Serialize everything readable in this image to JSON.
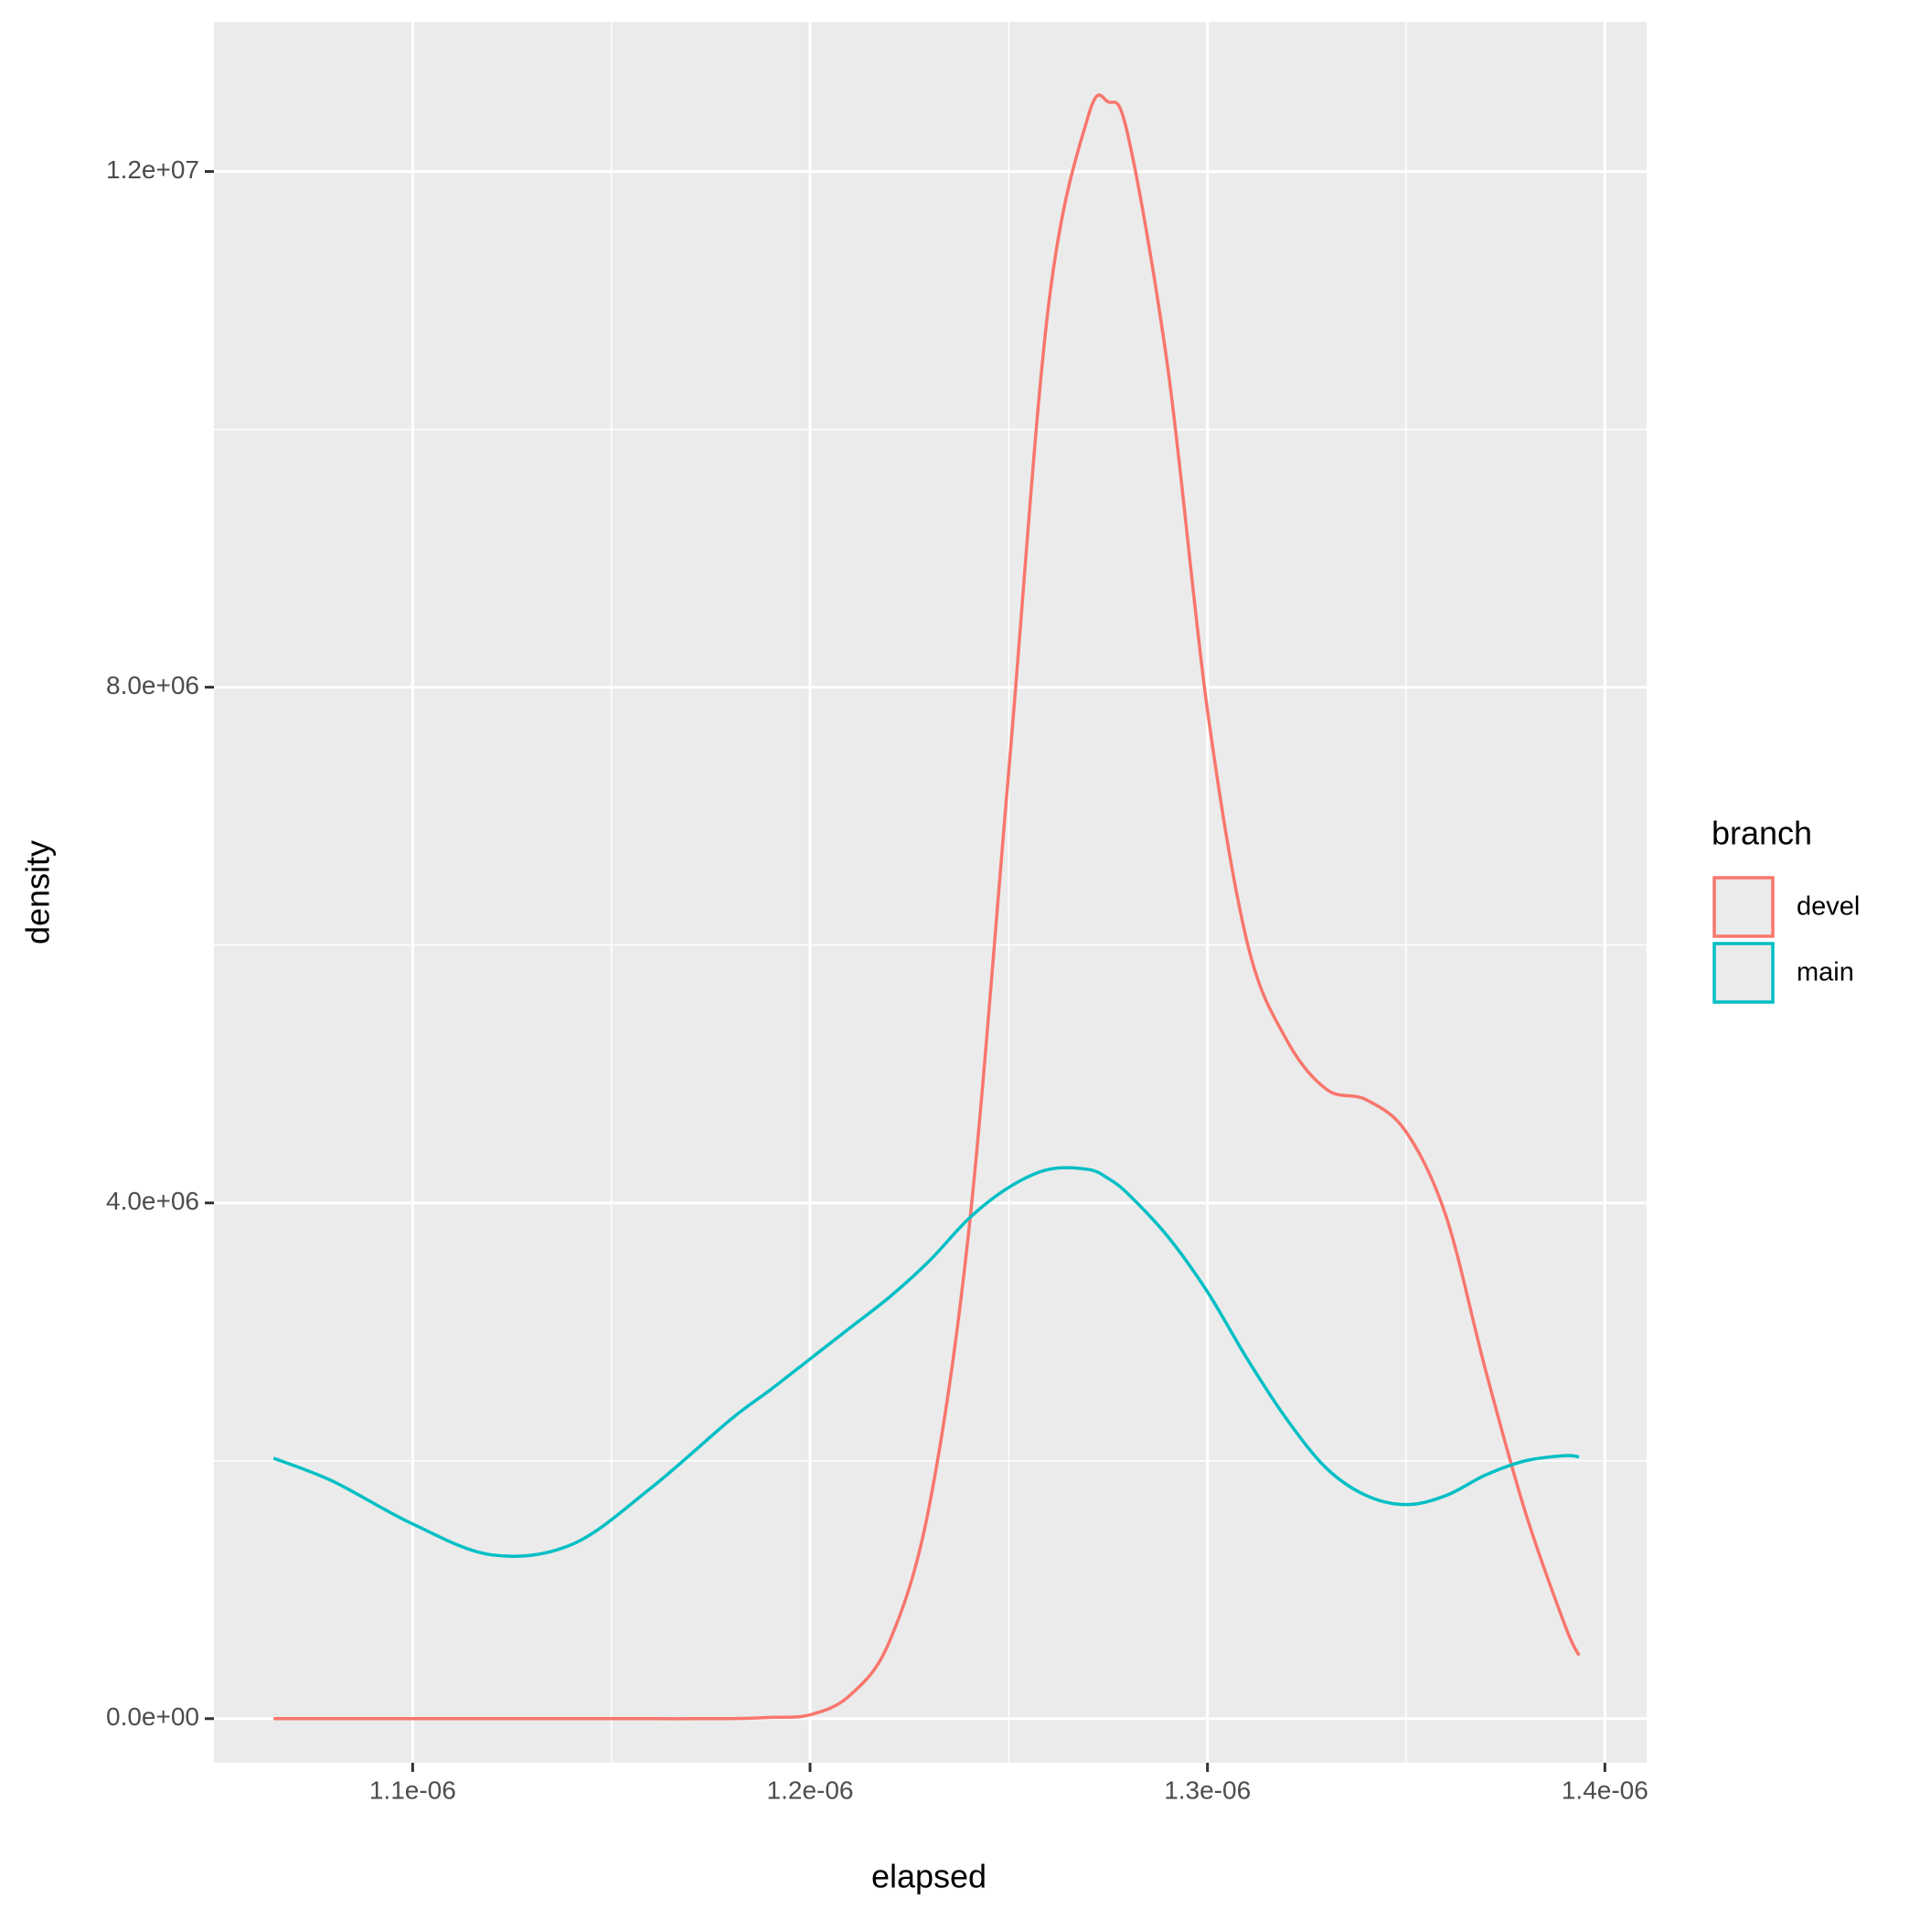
{
  "chart_data": {
    "type": "line",
    "x_label": "elapsed",
    "y_label": "density",
    "legend_title": "branch",
    "legend_position": "right",
    "grid": true,
    "xlim": [
      1.05e-06,
      1.4105e-06
    ],
    "ylim": [
      -342000,
      13160000
    ],
    "xticks": [
      {
        "value": 1.1e-06,
        "label": "1.1e-06"
      },
      {
        "value": 1.2e-06,
        "label": "1.2e-06"
      },
      {
        "value": 1.3e-06,
        "label": "1.3e-06"
      },
      {
        "value": 1.4e-06,
        "label": "1.4e-06"
      }
    ],
    "yticks": [
      {
        "value": 0,
        "label": "0.0e+00"
      },
      {
        "value": 4000000,
        "label": "4.0e+06"
      },
      {
        "value": 8000000,
        "label": "8.0e+06"
      },
      {
        "value": 12000000,
        "label": "1.2e+07"
      }
    ],
    "minor_xticks": [
      1.15e-06,
      1.25e-06,
      1.35e-06
    ],
    "minor_yticks": [
      2000000,
      6000000,
      10000000
    ],
    "x": [
      1.065e-06,
      1.08e-06,
      1.1e-06,
      1.12e-06,
      1.14e-06,
      1.16e-06,
      1.18e-06,
      1.19e-06,
      1.2e-06,
      1.21e-06,
      1.22e-06,
      1.23e-06,
      1.24e-06,
      1.25e-06,
      1.26e-06,
      1.27e-06,
      1.275e-06,
      1.28e-06,
      1.29e-06,
      1.3e-06,
      1.31e-06,
      1.32e-06,
      1.33e-06,
      1.34e-06,
      1.35e-06,
      1.36e-06,
      1.37e-06,
      1.38e-06,
      1.39e-06,
      1.3935e-06
    ],
    "series": [
      {
        "name": "devel",
        "color": "#f8766d",
        "values": [
          0,
          0,
          0,
          0,
          0,
          0,
          0,
          10000,
          30000,
          180000,
          600000,
          1650000,
          3800000,
          7350000,
          10960000,
          12430000,
          12540000,
          12280000,
          10480000,
          7820000,
          6020000,
          5260000,
          4880000,
          4800000,
          4550000,
          3900000,
          2700000,
          1600000,
          720000,
          490000
        ]
      },
      {
        "name": "main",
        "color": "#00bfc4",
        "values": [
          2020000,
          1840000,
          1510000,
          1270000,
          1350000,
          1790000,
          2320000,
          2550000,
          2790000,
          3030000,
          3270000,
          3550000,
          3880000,
          4120000,
          4260000,
          4260000,
          4190000,
          4070000,
          3740000,
          3310000,
          2790000,
          2320000,
          1940000,
          1730000,
          1660000,
          1730000,
          1890000,
          2000000,
          2040000,
          2030000
        ]
      }
    ]
  }
}
